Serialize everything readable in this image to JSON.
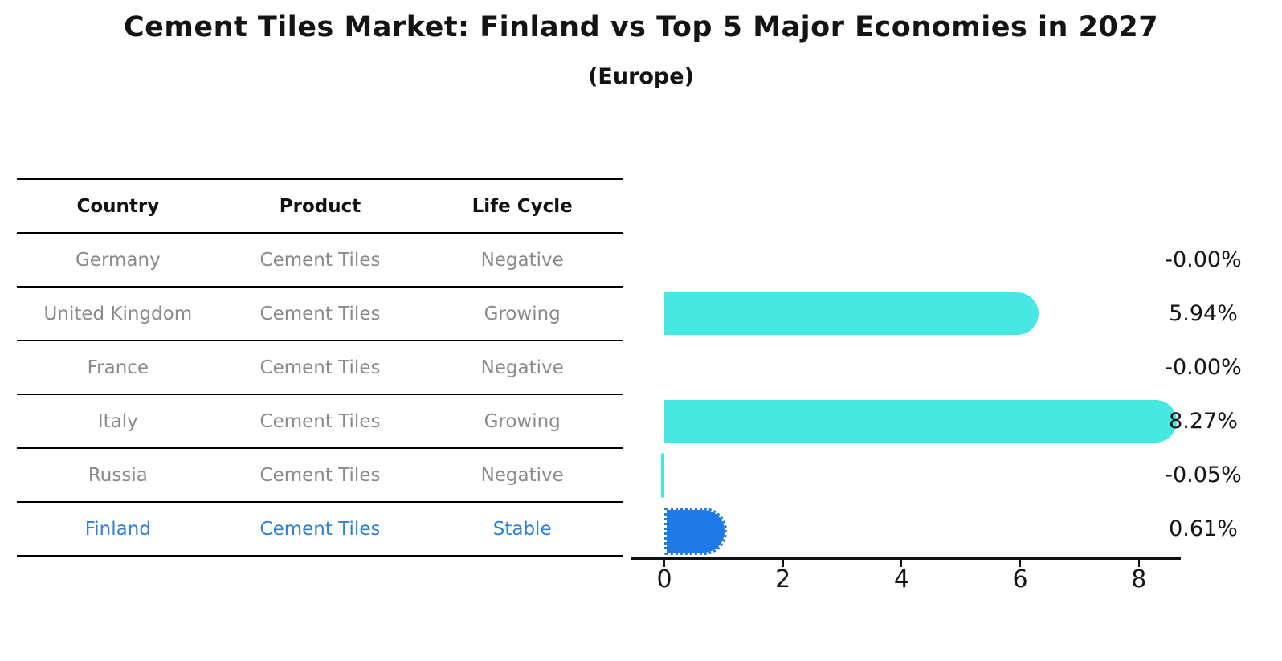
{
  "title": "Cement Tiles Market: Finland vs Top 5 Major Economies in 2027",
  "subtitle": "(Europe)",
  "table": {
    "headers": [
      "Country",
      "Product",
      "Life Cycle"
    ],
    "rows": [
      {
        "country": "Germany",
        "product": "Cement Tiles",
        "life_cycle": "Negative",
        "highlight": false
      },
      {
        "country": "United Kingdom",
        "product": "Cement Tiles",
        "life_cycle": "Growing",
        "highlight": false
      },
      {
        "country": "France",
        "product": "Cement Tiles",
        "life_cycle": "Negative",
        "highlight": false
      },
      {
        "country": "Italy",
        "product": "Cement Tiles",
        "life_cycle": "Growing",
        "highlight": false
      },
      {
        "country": "Russia",
        "product": "Cement Tiles",
        "life_cycle": "Negative",
        "highlight": false
      },
      {
        "country": "Finland",
        "product": "Cement Tiles",
        "life_cycle": "Stable",
        "highlight": true
      }
    ]
  },
  "chart_data": {
    "type": "bar",
    "orientation": "horizontal",
    "title": "Cement Tiles Market: Finland vs Top 5 Major Economies in 2027",
    "subtitle": "(Europe)",
    "categories": [
      "Germany",
      "United Kingdom",
      "France",
      "Italy",
      "Russia",
      "Finland"
    ],
    "values": [
      -0.0,
      5.94,
      -0.0,
      8.27,
      -0.05,
      0.61
    ],
    "value_labels": [
      "-0.00%",
      "5.94%",
      "-0.00%",
      "8.27%",
      "-0.05%",
      "0.61%"
    ],
    "xticks": [
      "0",
      "2",
      "4",
      "6",
      "8"
    ],
    "xtick_values": [
      0,
      2,
      4,
      6,
      8
    ],
    "xlim": [
      -0.55,
      8.7
    ],
    "xlabel": "",
    "ylabel": "",
    "grid": false,
    "legend": "none",
    "colors": {
      "bar_default": "#46e8e1",
      "bar_highlight": "#1f7ae8",
      "highlight_text": "#2f7fd3",
      "row_text": "#8a8a8a",
      "axis": "#111111"
    }
  }
}
